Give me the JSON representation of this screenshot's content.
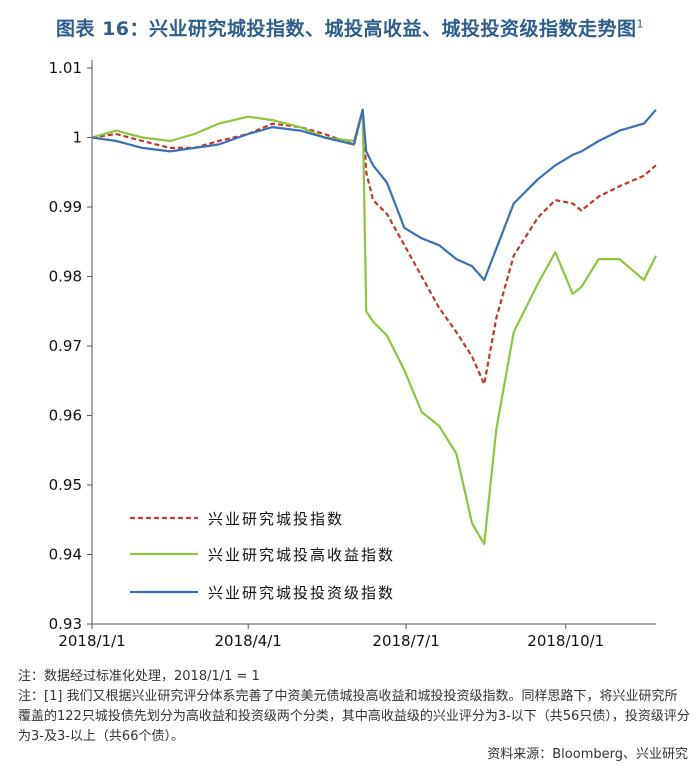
{
  "figure": {
    "title": "图表 16：兴业研究城投指数、城投高收益、城投投资级指数走势图",
    "title_superscript": "1"
  },
  "notes": [
    "注：数据经过标准化处理，2018/1/1 = 1",
    "注：[1] 我们又根据兴业研究评分体系完善了中资美元债城投高收益和城投投资级指数。同样思路下，将兴业研究所覆盖的122只城投债先划分为高收益和投资级两个分类，其中高收益级的兴业评分为3-以下（共56只债），投资级评分为3-及3-以上（共66个债）。"
  ],
  "source": "资料来源：Bloomberg、兴业研究",
  "chart_data": {
    "type": "line",
    "ylim": [
      0.93,
      1.01
    ],
    "yticks": [
      0.93,
      0.94,
      0.95,
      0.96,
      0.97,
      0.98,
      0.99,
      1,
      1.01
    ],
    "ytick_labels": [
      "0.93",
      "0.94",
      "0.95",
      "0.96",
      "0.97",
      "0.98",
      "0.99",
      "1",
      "1.01"
    ],
    "xlim": [
      "2018-01-01",
      "2018-11-22"
    ],
    "xticks": [
      "2018-01-01",
      "2018-04-01",
      "2018-07-01",
      "2018-10-01"
    ],
    "xtick_labels": [
      "2018/1/1",
      "2018/4/1",
      "2018/7/1",
      "2018/10/1"
    ],
    "grid": false,
    "legend_position": "bottom-left",
    "series": [
      {
        "name": "兴业研究城投指数",
        "color": "#c0392b",
        "dash": "dashed",
        "points": [
          [
            "2018-01-01",
            1.0
          ],
          [
            "2018-01-15",
            1.0005
          ],
          [
            "2018-01-30",
            0.9995
          ],
          [
            "2018-02-15",
            0.9985
          ],
          [
            "2018-03-01",
            0.9985
          ],
          [
            "2018-03-15",
            0.9995
          ],
          [
            "2018-04-01",
            1.0005
          ],
          [
            "2018-04-15",
            1.002
          ],
          [
            "2018-05-01",
            1.0015
          ],
          [
            "2018-05-15",
            1.0005
          ],
          [
            "2018-06-01",
            0.999
          ],
          [
            "2018-06-06",
            1.004
          ],
          [
            "2018-06-08",
            0.995
          ],
          [
            "2018-06-12",
            0.991
          ],
          [
            "2018-06-20",
            0.989
          ],
          [
            "2018-06-30",
            0.9845
          ],
          [
            "2018-07-10",
            0.98
          ],
          [
            "2018-07-20",
            0.9755
          ],
          [
            "2018-07-30",
            0.972
          ],
          [
            "2018-08-08",
            0.9685
          ],
          [
            "2018-08-15",
            0.9645
          ],
          [
            "2018-08-22",
            0.974
          ],
          [
            "2018-09-01",
            0.983
          ],
          [
            "2018-09-15",
            0.9885
          ],
          [
            "2018-09-25",
            0.991
          ],
          [
            "2018-10-05",
            0.9905
          ],
          [
            "2018-10-10",
            0.9895
          ],
          [
            "2018-10-20",
            0.9915
          ],
          [
            "2018-11-01",
            0.993
          ],
          [
            "2018-11-15",
            0.9945
          ],
          [
            "2018-11-22",
            0.996
          ]
        ]
      },
      {
        "name": "兴业研究城投高收益指数",
        "color": "#8dc63f",
        "dash": "solid",
        "points": [
          [
            "2018-01-01",
            1.0
          ],
          [
            "2018-01-15",
            1.001
          ],
          [
            "2018-01-30",
            1.0
          ],
          [
            "2018-02-15",
            0.9995
          ],
          [
            "2018-03-01",
            1.0005
          ],
          [
            "2018-03-15",
            1.002
          ],
          [
            "2018-04-01",
            1.003
          ],
          [
            "2018-04-15",
            1.0025
          ],
          [
            "2018-05-01",
            1.0015
          ],
          [
            "2018-05-15",
            1.0
          ],
          [
            "2018-06-01",
            0.9995
          ],
          [
            "2018-06-06",
            1.004
          ],
          [
            "2018-06-08",
            0.975
          ],
          [
            "2018-06-12",
            0.9735
          ],
          [
            "2018-06-20",
            0.9715
          ],
          [
            "2018-06-30",
            0.9665
          ],
          [
            "2018-07-10",
            0.9605
          ],
          [
            "2018-07-20",
            0.9585
          ],
          [
            "2018-07-30",
            0.9545
          ],
          [
            "2018-08-08",
            0.9445
          ],
          [
            "2018-08-15",
            0.9415
          ],
          [
            "2018-08-22",
            0.958
          ],
          [
            "2018-09-01",
            0.972
          ],
          [
            "2018-09-15",
            0.979
          ],
          [
            "2018-09-25",
            0.9835
          ],
          [
            "2018-10-05",
            0.9775
          ],
          [
            "2018-10-10",
            0.9785
          ],
          [
            "2018-10-20",
            0.9825
          ],
          [
            "2018-11-01",
            0.9825
          ],
          [
            "2018-11-15",
            0.9795
          ],
          [
            "2018-11-22",
            0.983
          ]
        ]
      },
      {
        "name": "兴业研究城投投资级指数",
        "color": "#3d6fb5",
        "dash": "solid",
        "points": [
          [
            "2018-01-01",
            1.0
          ],
          [
            "2018-01-15",
            0.9995
          ],
          [
            "2018-01-30",
            0.9985
          ],
          [
            "2018-02-15",
            0.998
          ],
          [
            "2018-03-01",
            0.9985
          ],
          [
            "2018-03-15",
            0.999
          ],
          [
            "2018-04-01",
            1.0005
          ],
          [
            "2018-04-15",
            1.0015
          ],
          [
            "2018-05-01",
            1.001
          ],
          [
            "2018-05-15",
            1.0
          ],
          [
            "2018-06-01",
            0.999
          ],
          [
            "2018-06-06",
            1.004
          ],
          [
            "2018-06-08",
            0.998
          ],
          [
            "2018-06-12",
            0.996
          ],
          [
            "2018-06-20",
            0.9935
          ],
          [
            "2018-06-30",
            0.987
          ],
          [
            "2018-07-10",
            0.9855
          ],
          [
            "2018-07-20",
            0.9845
          ],
          [
            "2018-07-30",
            0.9825
          ],
          [
            "2018-08-08",
            0.9815
          ],
          [
            "2018-08-15",
            0.9795
          ],
          [
            "2018-08-22",
            0.984
          ],
          [
            "2018-09-01",
            0.9905
          ],
          [
            "2018-09-15",
            0.994
          ],
          [
            "2018-09-25",
            0.996
          ],
          [
            "2018-10-05",
            0.9975
          ],
          [
            "2018-10-10",
            0.998
          ],
          [
            "2018-10-20",
            0.9995
          ],
          [
            "2018-11-01",
            1.001
          ],
          [
            "2018-11-15",
            1.002
          ],
          [
            "2018-11-22",
            1.004
          ]
        ]
      }
    ]
  }
}
